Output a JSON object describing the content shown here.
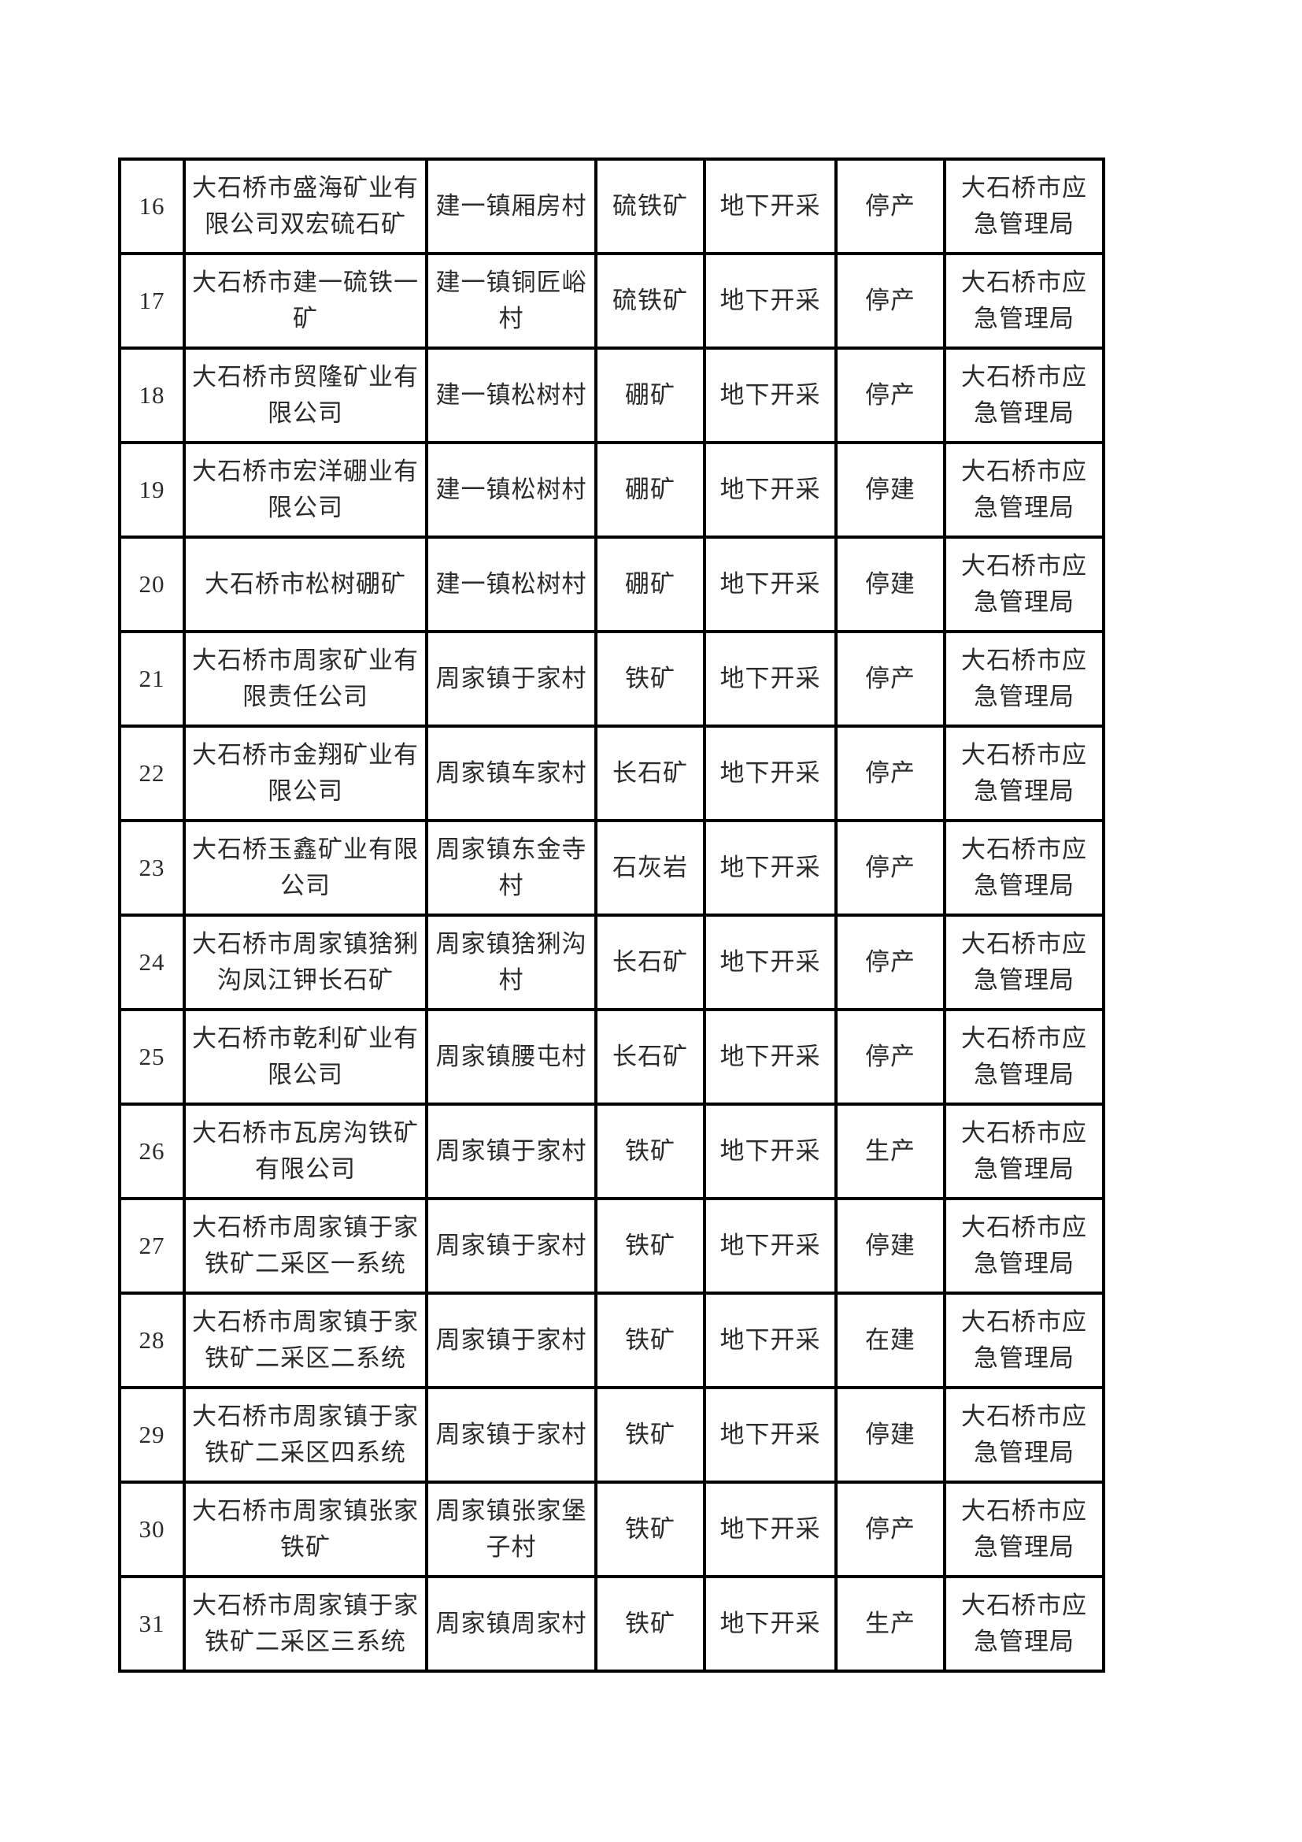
{
  "page": {
    "background_color": "#ffffff",
    "border_color": "#000000",
    "text_color": "#2b2b2b",
    "description": "scanned table page listing mines 16-31"
  },
  "table": {
    "columns": [
      {
        "key": "index"
      },
      {
        "key": "company"
      },
      {
        "key": "village"
      },
      {
        "key": "mineral"
      },
      {
        "key": "method"
      },
      {
        "key": "status"
      },
      {
        "key": "agency"
      }
    ],
    "rows": [
      {
        "index": "16",
        "company": "大石桥市盛海矿业有\n限公司双宏硫石矿",
        "village": "建一镇厢房村",
        "mineral": "硫铁矿",
        "method": "地下开采",
        "status": "停产",
        "agency": "大石桥市应\n急管理局"
      },
      {
        "index": "17",
        "company": "大石桥市建一硫铁一\n矿",
        "village": "建一镇铜匠峪\n村",
        "mineral": "硫铁矿",
        "method": "地下开采",
        "status": "停产",
        "agency": "大石桥市应\n急管理局"
      },
      {
        "index": "18",
        "company": "大石桥市贸隆矿业有\n限公司",
        "village": "建一镇松树村",
        "mineral": "硼矿",
        "method": "地下开采",
        "status": "停产",
        "agency": "大石桥市应\n急管理局"
      },
      {
        "index": "19",
        "company": "大石桥市宏洋硼业有\n限公司",
        "village": "建一镇松树村",
        "mineral": "硼矿",
        "method": "地下开采",
        "status": "停建",
        "agency": "大石桥市应\n急管理局"
      },
      {
        "index": "20",
        "company": "大石桥市松树硼矿",
        "village": "建一镇松树村",
        "mineral": "硼矿",
        "method": "地下开采",
        "status": "停建",
        "agency": "大石桥市应\n急管理局"
      },
      {
        "index": "21",
        "company": "大石桥市周家矿业有\n限责任公司",
        "village": "周家镇于家村",
        "mineral": "铁矿",
        "method": "地下开采",
        "status": "停产",
        "agency": "大石桥市应\n急管理局"
      },
      {
        "index": "22",
        "company": "大石桥市金翔矿业有\n限公司",
        "village": "周家镇车家村",
        "mineral": "长石矿",
        "method": "地下开采",
        "status": "停产",
        "agency": "大石桥市应\n急管理局"
      },
      {
        "index": "23",
        "company": "大石桥玉鑫矿业有限\n公司",
        "village": "周家镇东金寺\n村",
        "mineral": "石灰岩",
        "method": "地下开采",
        "status": "停产",
        "agency": "大石桥市应\n急管理局"
      },
      {
        "index": "24",
        "company": "大石桥市周家镇猞猁\n沟凤江钾长石矿",
        "village": "周家镇猞猁沟\n村",
        "mineral": "长石矿",
        "method": "地下开采",
        "status": "停产",
        "agency": "大石桥市应\n急管理局"
      },
      {
        "index": "25",
        "company": "大石桥市乾利矿业有\n限公司",
        "village": "周家镇腰屯村",
        "mineral": "长石矿",
        "method": "地下开采",
        "status": "停产",
        "agency": "大石桥市应\n急管理局"
      },
      {
        "index": "26",
        "company": "大石桥市瓦房沟铁矿\n有限公司",
        "village": "周家镇于家村",
        "mineral": "铁矿",
        "method": "地下开采",
        "status": "生产",
        "agency": "大石桥市应\n急管理局"
      },
      {
        "index": "27",
        "company": "大石桥市周家镇于家\n铁矿二采区一系统",
        "village": "周家镇于家村",
        "mineral": "铁矿",
        "method": "地下开采",
        "status": "停建",
        "agency": "大石桥市应\n急管理局"
      },
      {
        "index": "28",
        "company": "大石桥市周家镇于家\n铁矿二采区二系统",
        "village": "周家镇于家村",
        "mineral": "铁矿",
        "method": "地下开采",
        "status": "在建",
        "agency": "大石桥市应\n急管理局"
      },
      {
        "index": "29",
        "company": "大石桥市周家镇于家\n铁矿二采区四系统",
        "village": "周家镇于家村",
        "mineral": "铁矿",
        "method": "地下开采",
        "status": "停建",
        "agency": "大石桥市应\n急管理局"
      },
      {
        "index": "30",
        "company": "大石桥市周家镇张家\n铁矿",
        "village": "周家镇张家堡\n子村",
        "mineral": "铁矿",
        "method": "地下开采",
        "status": "停产",
        "agency": "大石桥市应\n急管理局"
      },
      {
        "index": "31",
        "company": "大石桥市周家镇于家\n铁矿二采区三系统",
        "village": "周家镇周家村",
        "mineral": "铁矿",
        "method": "地下开采",
        "status": "生产",
        "agency": "大石桥市应\n急管理局"
      }
    ]
  }
}
